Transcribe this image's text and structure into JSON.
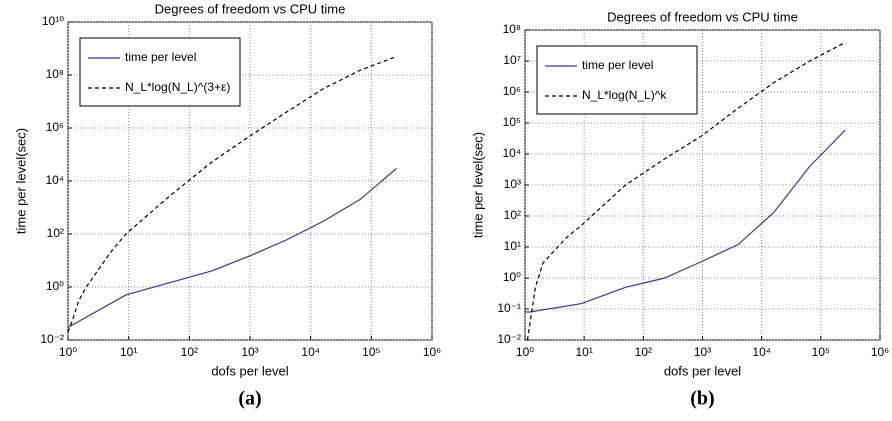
{
  "chart_data": [
    {
      "type": "line",
      "title": "Degrees of freedom vs CPU time",
      "xlabel": "dofs per level",
      "ylabel": "time per level(sec)",
      "caption": "(a)",
      "xscale": "log",
      "yscale": "log",
      "grid": true,
      "legend": "upper left",
      "xlim": [
        1,
        1000000
      ],
      "ylim": [
        0.01,
        10000000000
      ],
      "xticks": [
        {
          "value": 1,
          "label": "10⁰"
        },
        {
          "value": 10,
          "label": "10¹"
        },
        {
          "value": 100,
          "label": "10²"
        },
        {
          "value": 1000,
          "label": "10³"
        },
        {
          "value": 10000,
          "label": "10⁴"
        },
        {
          "value": 100000,
          "label": "10⁵"
        },
        {
          "value": 1000000,
          "label": "10⁶"
        }
      ],
      "yticks": [
        {
          "value": 0.01,
          "label": "10⁻²"
        },
        {
          "value": 1,
          "label": "10⁰"
        },
        {
          "value": 100,
          "label": "10²"
        },
        {
          "value": 10000,
          "label": "10⁴"
        },
        {
          "value": 1000000,
          "label": "10⁶"
        },
        {
          "value": 100000000,
          "label": "10⁸"
        },
        {
          "value": 10000000000,
          "label": "10¹⁰"
        }
      ],
      "series": [
        {
          "name": "time per level",
          "color": "#2e3d8f",
          "dash": "solid",
          "x": [
            1,
            9,
            50,
            230,
            1000,
            4000,
            16000,
            65000,
            260000
          ],
          "values": [
            0.03,
            0.5,
            1.5,
            4,
            15,
            60,
            300,
            2000,
            30000
          ]
        },
        {
          "name": "N_L*log(N_L)^(3+ε)",
          "color": "#000000",
          "dash": "dashed",
          "x": [
            1,
            1.2,
            1.5,
            2,
            5,
            9,
            50,
            230,
            1000,
            4000,
            16000,
            65000,
            260000
          ],
          "values": [
            0.02,
            0.06,
            0.3,
            1,
            20,
            100,
            3000,
            50000,
            500000,
            4000000,
            30000000,
            150000000,
            500000000
          ]
        }
      ]
    },
    {
      "type": "line",
      "title": "Degrees of freedom vs CPU time",
      "xlabel": "dofs per level",
      "ylabel": "time per level(sec)",
      "caption": "(b)",
      "xscale": "log",
      "yscale": "log",
      "grid": true,
      "legend": "upper left",
      "xlim": [
        1,
        1000000
      ],
      "ylim": [
        0.01,
        100000000
      ],
      "xticks": [
        {
          "value": 1,
          "label": "10⁰"
        },
        {
          "value": 10,
          "label": "10¹"
        },
        {
          "value": 100,
          "label": "10²"
        },
        {
          "value": 1000,
          "label": "10³"
        },
        {
          "value": 10000,
          "label": "10⁴"
        },
        {
          "value": 100000,
          "label": "10⁵"
        },
        {
          "value": 1000000,
          "label": "10⁶"
        }
      ],
      "yticks": [
        {
          "value": 0.01,
          "label": "10⁻²"
        },
        {
          "value": 0.1,
          "label": "10⁻¹"
        },
        {
          "value": 1,
          "label": "10⁰"
        },
        {
          "value": 10,
          "label": "10¹"
        },
        {
          "value": 100,
          "label": "10²"
        },
        {
          "value": 1000,
          "label": "10³"
        },
        {
          "value": 10000,
          "label": "10⁴"
        },
        {
          "value": 100000,
          "label": "10⁵"
        },
        {
          "value": 1000000,
          "label": "10⁶"
        },
        {
          "value": 10000000,
          "label": "10⁷"
        },
        {
          "value": 100000000,
          "label": "10⁸"
        }
      ],
      "series": [
        {
          "name": "time per level",
          "color": "#2e3d8f",
          "dash": "solid",
          "x": [
            1,
            1.2,
            9,
            50,
            230,
            1000,
            4000,
            16000,
            65000,
            260000
          ],
          "values": [
            0.08,
            0.08,
            0.15,
            0.5,
            1,
            3.5,
            12,
            130,
            4000,
            60000
          ]
        },
        {
          "name": "N_L*log(N_L)^k",
          "color": "#000000",
          "dash": "dashed",
          "x": [
            1.1,
            1.5,
            2,
            5,
            9,
            50,
            230,
            1000,
            4000,
            16000,
            65000,
            260000
          ],
          "values": [
            0.01,
            0.5,
            3,
            20,
            50,
            1000,
            7000,
            40000,
            300000,
            2000000,
            10000000,
            40000000
          ]
        }
      ]
    }
  ]
}
